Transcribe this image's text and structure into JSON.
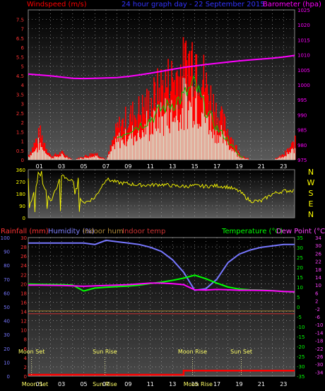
{
  "top_panel": {
    "left_label": "Windspeed (m/s)",
    "title": "24 hour graph day - 22 September 2015",
    "right_label": "Barometer (hpa)",
    "left_ticks": [
      "0",
      "0.5",
      "1",
      "1.5",
      "2",
      "2.5",
      "3",
      "3.5",
      "4",
      "4.5",
      "5",
      "5.5",
      "6",
      "6.5",
      "7",
      "7.5",
      "8"
    ],
    "right_ticks": [
      "975",
      "980",
      "985",
      "990",
      "995",
      "1000",
      "1005",
      "1010",
      "1015",
      "1020",
      "1025"
    ],
    "hours": [
      "01",
      "03",
      "05",
      "07",
      "09",
      "11",
      "13",
      "15",
      "17",
      "19",
      "21",
      "23"
    ]
  },
  "mid_panel": {
    "ticks": [
      "0",
      "90",
      "180",
      "270",
      "360"
    ],
    "compass": [
      "N",
      "W",
      "S",
      "E",
      "N"
    ]
  },
  "bottom_panel": {
    "rain_label": "Rainfall (mm)",
    "hum_label": "Humidity (%)",
    "indoor_hum_label": "Indoor hum",
    "indoor_temp_label": "Indoor temp",
    "temp_label": "Temperature (°C)",
    "dew_label": "Dew Point (°C)",
    "rain_ticks": [
      "0",
      "2",
      "4",
      "6",
      "8",
      "10",
      "12",
      "14",
      "16",
      "18",
      "20",
      "22",
      "24",
      "26",
      "28",
      "30"
    ],
    "hum_ticks": [
      "0",
      "10",
      "20",
      "30",
      "40",
      "50",
      "60",
      "70",
      "80",
      "90",
      "100"
    ],
    "temp_ticks": [
      "35",
      "30",
      "25",
      "20",
      "15",
      "10",
      "5",
      "0",
      "-5",
      "-10",
      "-15",
      "-20",
      "-25",
      "-30",
      "-35"
    ],
    "dew_ticks": [
      "34",
      "32",
      "30",
      "28",
      "26",
      "24",
      "22",
      "20",
      "18",
      "16",
      "14",
      "12",
      "10",
      "8",
      "6",
      "4",
      "2",
      "0",
      "-2",
      "-4",
      "-6",
      "-8",
      "-10",
      "-12",
      "-14",
      "-16",
      "-18",
      "-20",
      "-22",
      "-24",
      "-26",
      "-28",
      "-30",
      "-32",
      "-34",
      "-36"
    ],
    "events": [
      {
        "label": "Moon Set",
        "hour": 0.3
      },
      {
        "label": "Sun Rise",
        "hour": 6.9
      },
      {
        "label": "Moon Rise",
        "hour": 14.8
      },
      {
        "label": "Sun Set",
        "hour": 19.2
      }
    ],
    "bottom_labels": [
      "Moon Set",
      "Sun Rise",
      "Moon Rise"
    ],
    "hours": [
      "01",
      "03",
      "05",
      "07",
      "09",
      "11",
      "13",
      "15",
      "17",
      "19",
      "21",
      "23"
    ]
  },
  "chart_data": [
    {
      "type": "bar",
      "title": "24 hour graph day - 22 September 2015",
      "ylabel": "Windspeed (m/s)",
      "y2label": "Barometer (hpa)",
      "ylim": [
        0,
        8
      ],
      "y2lim": [
        975,
        1025
      ],
      "x_hours": [
        0,
        1,
        2,
        3,
        4,
        5,
        6,
        7,
        8,
        9,
        10,
        11,
        12,
        13,
        14,
        15,
        16,
        17,
        18,
        19,
        20,
        21,
        22,
        23,
        24
      ],
      "series": [
        {
          "name": "Windspeed (m/s)",
          "color": "#ff0000",
          "values": [
            0.3,
            1.5,
            0.2,
            0.4,
            0,
            0.2,
            0.4,
            0,
            1.8,
            2.4,
            2.8,
            3.3,
            4.2,
            4.6,
            5.2,
            6.2,
            4.1,
            2.6,
            1.6,
            0.3,
            0,
            0,
            0,
            0.3,
            1.0
          ]
        },
        {
          "name": "Barometer (hpa)",
          "color": "#ff00ff",
          "values": [
            1003.6,
            1003.3,
            1003.0,
            1002.6,
            1002.2,
            1002.1,
            1002.2,
            1002.3,
            1002.4,
            1002.8,
            1003.3,
            1003.9,
            1004.5,
            1005.2,
            1005.8,
            1006.3,
            1006.8,
            1007.2,
            1007.6,
            1008.0,
            1008.3,
            1008.6,
            1008.9,
            1009.3,
            1009.8
          ]
        }
      ]
    },
    {
      "type": "line",
      "ylabel": "Wind direction",
      "ylim": [
        0,
        360
      ],
      "x_hours": [
        0,
        1,
        2,
        3,
        4,
        5,
        6,
        7,
        8,
        9,
        10,
        11,
        12,
        13,
        14,
        15,
        16,
        17,
        18,
        19,
        20,
        21,
        22,
        23,
        24
      ],
      "series": [
        {
          "name": "Wind direction",
          "color": "#ffff00",
          "values": [
            40,
            330,
            120,
            320,
            270,
            110,
            150,
            290,
            265,
            255,
            245,
            245,
            250,
            240,
            235,
            240,
            235,
            240,
            230,
            200,
            125,
            125,
            180,
            200,
            205
          ]
        }
      ]
    },
    {
      "type": "line",
      "x_hours": [
        0,
        1,
        2,
        3,
        4,
        5,
        6,
        7,
        8,
        9,
        10,
        11,
        12,
        13,
        14,
        15,
        16,
        17,
        18,
        19,
        20,
        21,
        22,
        23,
        24
      ],
      "series": [
        {
          "name": "Humidity (%)",
          "axis": "hum",
          "color": "#7777ff",
          "values": [
            96,
            96,
            96,
            96,
            96,
            96,
            95,
            98,
            97,
            96,
            95,
            93,
            90,
            84,
            75,
            62,
            63,
            70,
            82,
            88,
            91,
            93,
            94,
            95,
            95
          ]
        },
        {
          "name": "Temperature (°C)",
          "axis": "temp",
          "color": "#00ff00",
          "values": [
            11.5,
            11.4,
            11.3,
            11.2,
            11.0,
            8.0,
            9.5,
            9.9,
            10.2,
            10.5,
            11.0,
            11.8,
            12.5,
            13.4,
            14.5,
            16.0,
            14.2,
            12.0,
            10.0,
            9.0,
            8.6,
            8.5,
            8.2,
            7.8,
            7.5
          ]
        },
        {
          "name": "Dew Point (°C)",
          "axis": "temp",
          "color": "#ff00ff",
          "values": [
            11.0,
            11.0,
            10.9,
            10.8,
            10.6,
            10.4,
            10.6,
            10.8,
            11.0,
            11.2,
            11.6,
            12.0,
            12.0,
            11.7,
            11.2,
            8.6,
            8.5,
            8.8,
            8.6,
            8.4,
            8.4,
            8.3,
            8.1,
            7.8,
            7.6
          ]
        },
        {
          "name": "Indoor hum",
          "axis": "hum",
          "color": "#a08030",
          "values": [
            47,
            47,
            47,
            47,
            47,
            47,
            47,
            47,
            47,
            47,
            47,
            47,
            47,
            47,
            47,
            47,
            47,
            47,
            47,
            47,
            47,
            47,
            47,
            47,
            47
          ]
        },
        {
          "name": "Indoor temp",
          "axis": "temp",
          "color": "#cc3333",
          "values": [
            -3.5,
            -3.5,
            -3.5,
            -3.5,
            -3.5,
            -3.5,
            -3.5,
            -3.5,
            -3.5,
            -3.5,
            -3.5,
            -3.5,
            -3.5,
            -3.5,
            -3.5,
            -3.5,
            -3.5,
            -3.5,
            -3.5,
            -3.5,
            -3.5,
            -3.5,
            -3.5,
            -3.5,
            -3.5
          ]
        },
        {
          "name": "Rainfall (mm)",
          "axis": "rain",
          "color": "#ff0000",
          "values": [
            0.3,
            0.3,
            0.3,
            0.3,
            0.3,
            0.3,
            0.3,
            0.3,
            0.3,
            0.3,
            0.3,
            0.3,
            0.3,
            0.3,
            1.2,
            1.2,
            1.2,
            1.2,
            1.2,
            1.2,
            1.2,
            1.2,
            1.2,
            1.2,
            1.2
          ]
        }
      ],
      "ylim_rain": [
        0,
        30
      ],
      "ylim_hum": [
        0,
        100
      ],
      "ylim_temp": [
        -35,
        35
      ]
    }
  ]
}
